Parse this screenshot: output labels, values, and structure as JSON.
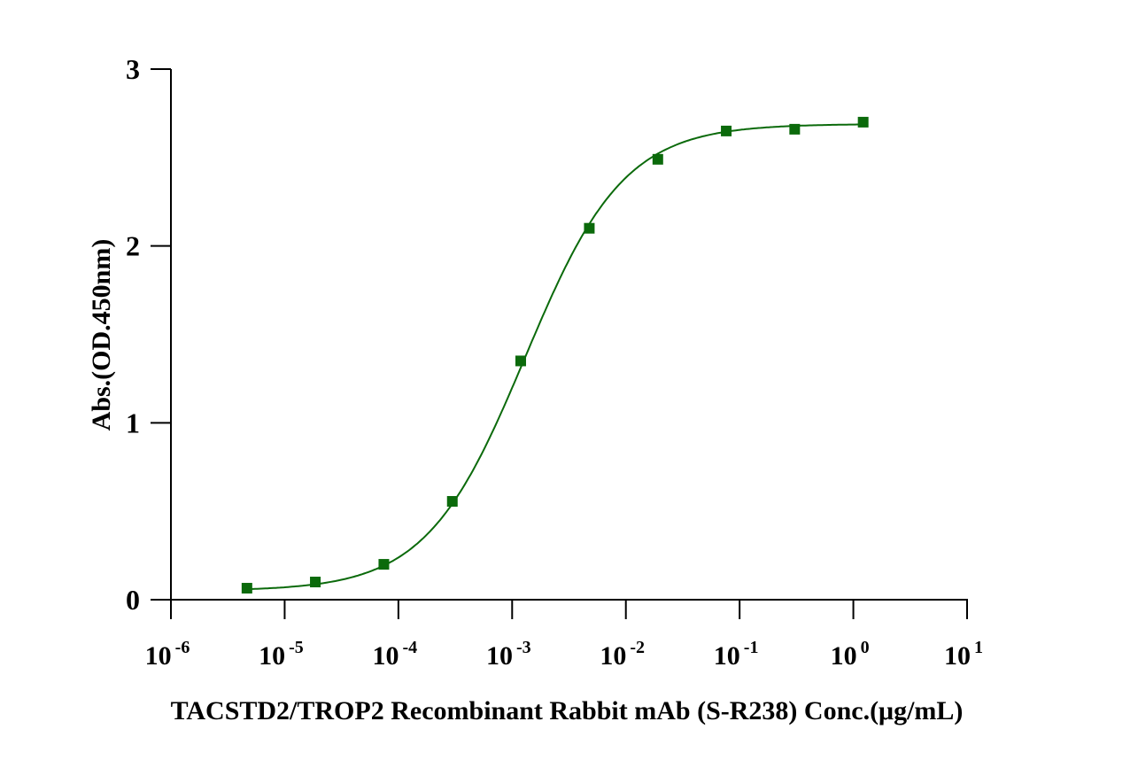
{
  "chart_data": {
    "type": "scatter",
    "title": "",
    "xlabel": "TACSTD2/TROP2 Recombinant Rabbit mAb (S-R238) Conc.(μg/mL)",
    "ylabel": "Abs.(OD.450nm)",
    "xscale": "log10",
    "xlim": [
      1e-06,
      10
    ],
    "ylim": [
      0,
      3
    ],
    "grid": false,
    "legend": "none",
    "marker_color": "#0b6a0b",
    "x_ticks": [
      {
        "base": "10",
        "exp": "-6",
        "value": 1e-06
      },
      {
        "base": "10",
        "exp": "-5",
        "value": 1e-05
      },
      {
        "base": "10",
        "exp": "-4",
        "value": 0.0001
      },
      {
        "base": "10",
        "exp": "-3",
        "value": 0.001
      },
      {
        "base": "10",
        "exp": "-2",
        "value": 0.01
      },
      {
        "base": "10",
        "exp": "-1",
        "value": 0.1
      },
      {
        "base": "10",
        "exp": "0",
        "value": 1
      },
      {
        "base": "10",
        "exp": "1",
        "value": 10
      }
    ],
    "y_ticks": [
      {
        "label": "0",
        "value": 0
      },
      {
        "label": "1",
        "value": 1
      },
      {
        "label": "2",
        "value": 2
      },
      {
        "label": "3",
        "value": 3
      }
    ],
    "series": [
      {
        "name": "TACSTD2/TROP2 Recombinant Rabbit mAb (S-R238)",
        "x": [
          4.66e-06,
          1.86e-05,
          7.45e-05,
          0.000298,
          0.00119,
          0.00477,
          0.0191,
          0.0763,
          0.305,
          1.22
        ],
        "y": [
          0.065,
          0.1,
          0.2,
          0.556,
          1.35,
          2.1,
          2.49,
          2.65,
          2.66,
          2.7
        ],
        "fit": {
          "model": "4PL",
          "bottom": 0.05,
          "top": 2.69,
          "ec50": 0.0013,
          "hill": 1.0
        }
      }
    ]
  }
}
